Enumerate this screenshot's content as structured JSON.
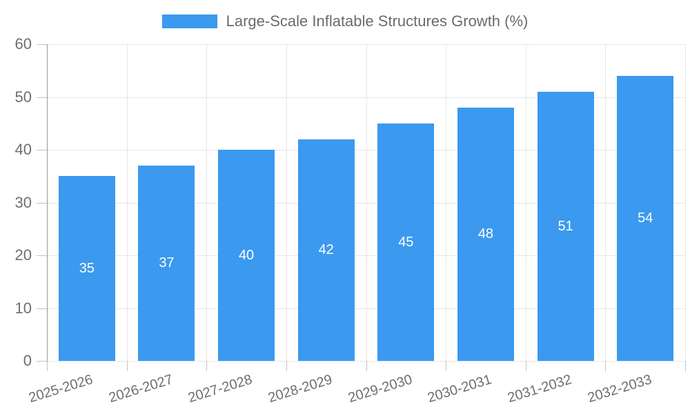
{
  "chart_data": {
    "type": "bar",
    "title": "Large-Scale Inflatable Structures Growth (%)",
    "categories": [
      "2025-2026",
      "2026-2027",
      "2027-2028",
      "2028-2029",
      "2029-2030",
      "2030-2031",
      "2031-2032",
      "2032-2033"
    ],
    "values": [
      35,
      37,
      40,
      42,
      45,
      48,
      51,
      54
    ],
    "series": [
      {
        "name": "Large-Scale Inflatable Structures Growth (%)",
        "values": [
          35,
          37,
          40,
          42,
          45,
          48,
          51,
          54
        ]
      }
    ],
    "xlabel": "",
    "ylabel": "",
    "ylim": [
      0,
      60
    ],
    "yticks": [
      0,
      10,
      20,
      30,
      40,
      50,
      60
    ],
    "grid": true,
    "legend_position": "top",
    "value_labels": "centered inside bars"
  },
  "colors": {
    "bar": "#3b99ef",
    "background": "#ffffff",
    "gridline": "#e6e6e6",
    "axis_line": "#999999",
    "tick_mark": "#c2c2c2",
    "axis_text": "#6e6e6e",
    "legend_text": "#6b6b6b",
    "value_label_text": "#ffffff"
  }
}
